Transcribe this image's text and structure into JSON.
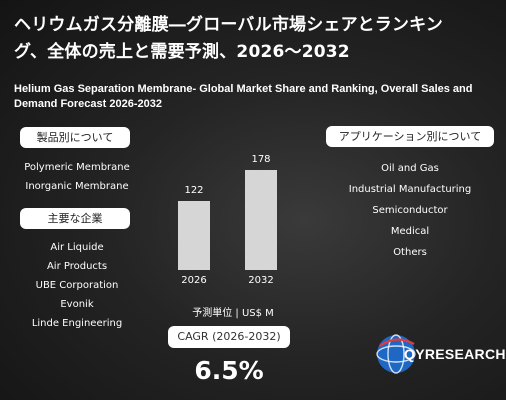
{
  "title_jp_line1": "ヘリウムガス分離膜―グローバル市場シェアとランキン",
  "title_jp_line2": "グ、全体の売上と需要予測、2026〜2032",
  "title_en": "Helium Gas Separation Membrane- Global Market Share and Ranking, Overall Sales and Demand Forecast 2026-2032",
  "product_section": {
    "label": "製品別について",
    "items": [
      "Polymeric Membrane",
      "Inorganic Membrane"
    ]
  },
  "company_section": {
    "label": "主要な企業",
    "items": [
      "Air Liquide",
      "Air Products",
      "UBE Corporation",
      "Evonik",
      "Linde Engineering"
    ]
  },
  "application_section": {
    "label": "アプリケーション別について",
    "items": [
      "Oil and Gas",
      "Industrial Manufacturing",
      "Semiconductor",
      "Medical",
      "Others"
    ]
  },
  "chart_data": {
    "type": "bar",
    "categories": [
      "2026",
      "2032"
    ],
    "values": [
      122,
      178
    ],
    "ylim": [
      0,
      178
    ],
    "unit_label": "予測単位 | US$ M",
    "bar_color": "#d6d6d6"
  },
  "cagr": {
    "label": "CAGR (2026-2032)",
    "value": "6.5%"
  },
  "logo": {
    "name": "QYRESEARCH",
    "icon": "qyresearch-globe-logo",
    "accent_color": "#1f6fd6"
  }
}
